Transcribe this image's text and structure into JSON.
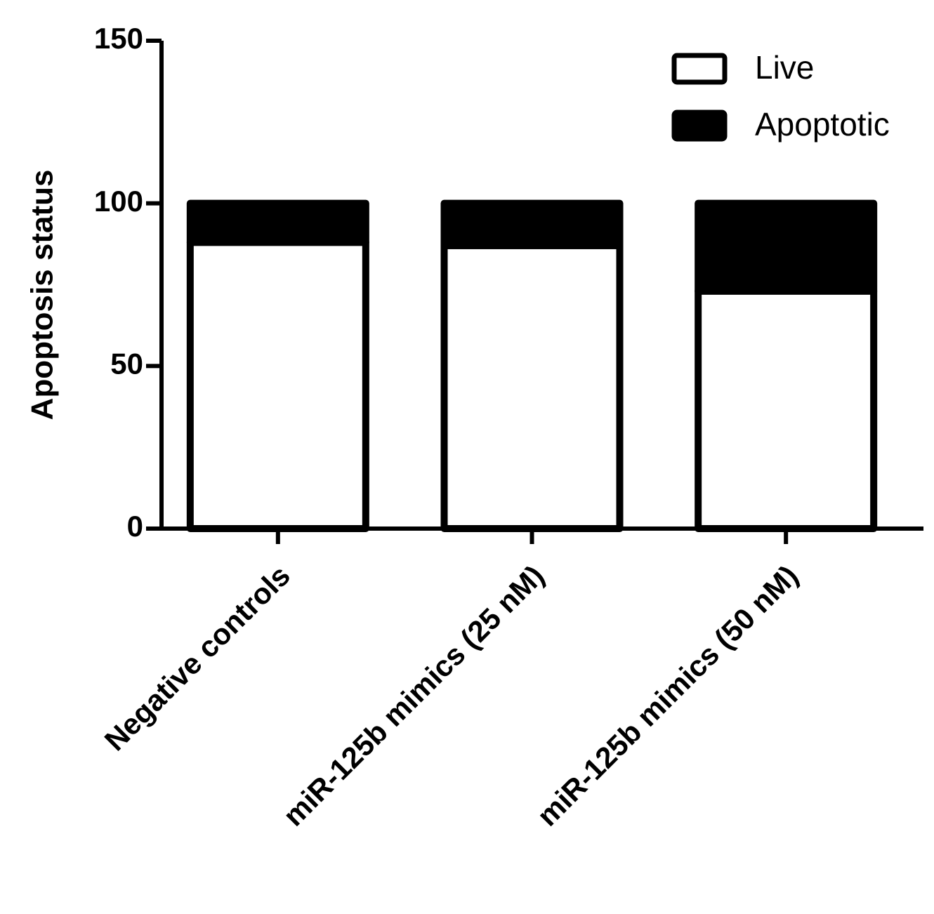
{
  "chart_data": {
    "type": "stacked_bar",
    "y_label": "Apoptosis status",
    "categories": [
      "Negative controls",
      "miR-125b mimics (25 nM)",
      "miR-125b mimics (50 nM)"
    ],
    "series": [
      {
        "name": "Live",
        "color": "#ffffff",
        "values": [
          88,
          87,
          73
        ]
      },
      {
        "name": "Apoptotic",
        "color": "#000000",
        "values": [
          12,
          13,
          27
        ]
      }
    ],
    "ylim": [
      0,
      150
    ],
    "yticks": [
      0,
      50,
      100,
      150
    ],
    "legend": "upper right",
    "grid": false
  }
}
